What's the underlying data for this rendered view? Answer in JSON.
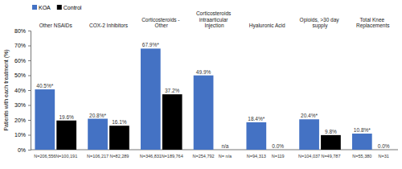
{
  "chart_data": {
    "type": "bar",
    "y_label": "Patients with each treatment (%)",
    "categories": [
      "Other NSAIDs",
      "COX-2 Inhibitors",
      "Corticosteroids - Other",
      "Corticosteroids intraarticular Injection",
      "Hyaluronic Acid",
      "Opioids, >30 day supply",
      "Total Knee Replacements"
    ],
    "series": [
      {
        "name": "KOA",
        "color": "#4472c4",
        "values": [
          40.5,
          20.8,
          67.9,
          49.9,
          18.4,
          20.4,
          10.8
        ],
        "value_labels": [
          "40.5%*",
          "20.8%*",
          "67.9%*",
          "49.9%",
          "18.4%*",
          "20.4%*",
          "10.8%*"
        ],
        "n_labels": [
          "N=206,556",
          "N=106,217",
          "N=346,831",
          "N=254,792",
          "N=94,313",
          "N=104,037",
          "N=55,380"
        ]
      },
      {
        "name": "Control",
        "color": "#000000",
        "values": [
          19.6,
          16.1,
          37.2,
          null,
          0.0,
          9.8,
          0.0
        ],
        "value_labels": [
          "19.6%",
          "16.1%",
          "37.2%",
          "n/a",
          "0.0%",
          "9.8%",
          "0.0%"
        ],
        "n_labels": [
          "N=100,191",
          "N=82,289",
          "N=189,764",
          "N= n/a",
          "N=119",
          "N=49,787",
          "N=31"
        ]
      }
    ],
    "ylim": [
      0,
      80
    ],
    "yticks": [
      {
        "value": 0,
        "label": "0%"
      },
      {
        "value": 10,
        "label": "10%"
      },
      {
        "value": 20,
        "label": "20%"
      },
      {
        "value": 30,
        "label": "30%"
      },
      {
        "value": 40,
        "label": "40%"
      },
      {
        "value": 50,
        "label": "50%"
      },
      {
        "value": 60,
        "label": "60%"
      },
      {
        "value": 70,
        "label": "70%"
      },
      {
        "value": 80,
        "label": "80%"
      }
    ],
    "grid": false,
    "legend": "top-left",
    "data_labels": true
  }
}
